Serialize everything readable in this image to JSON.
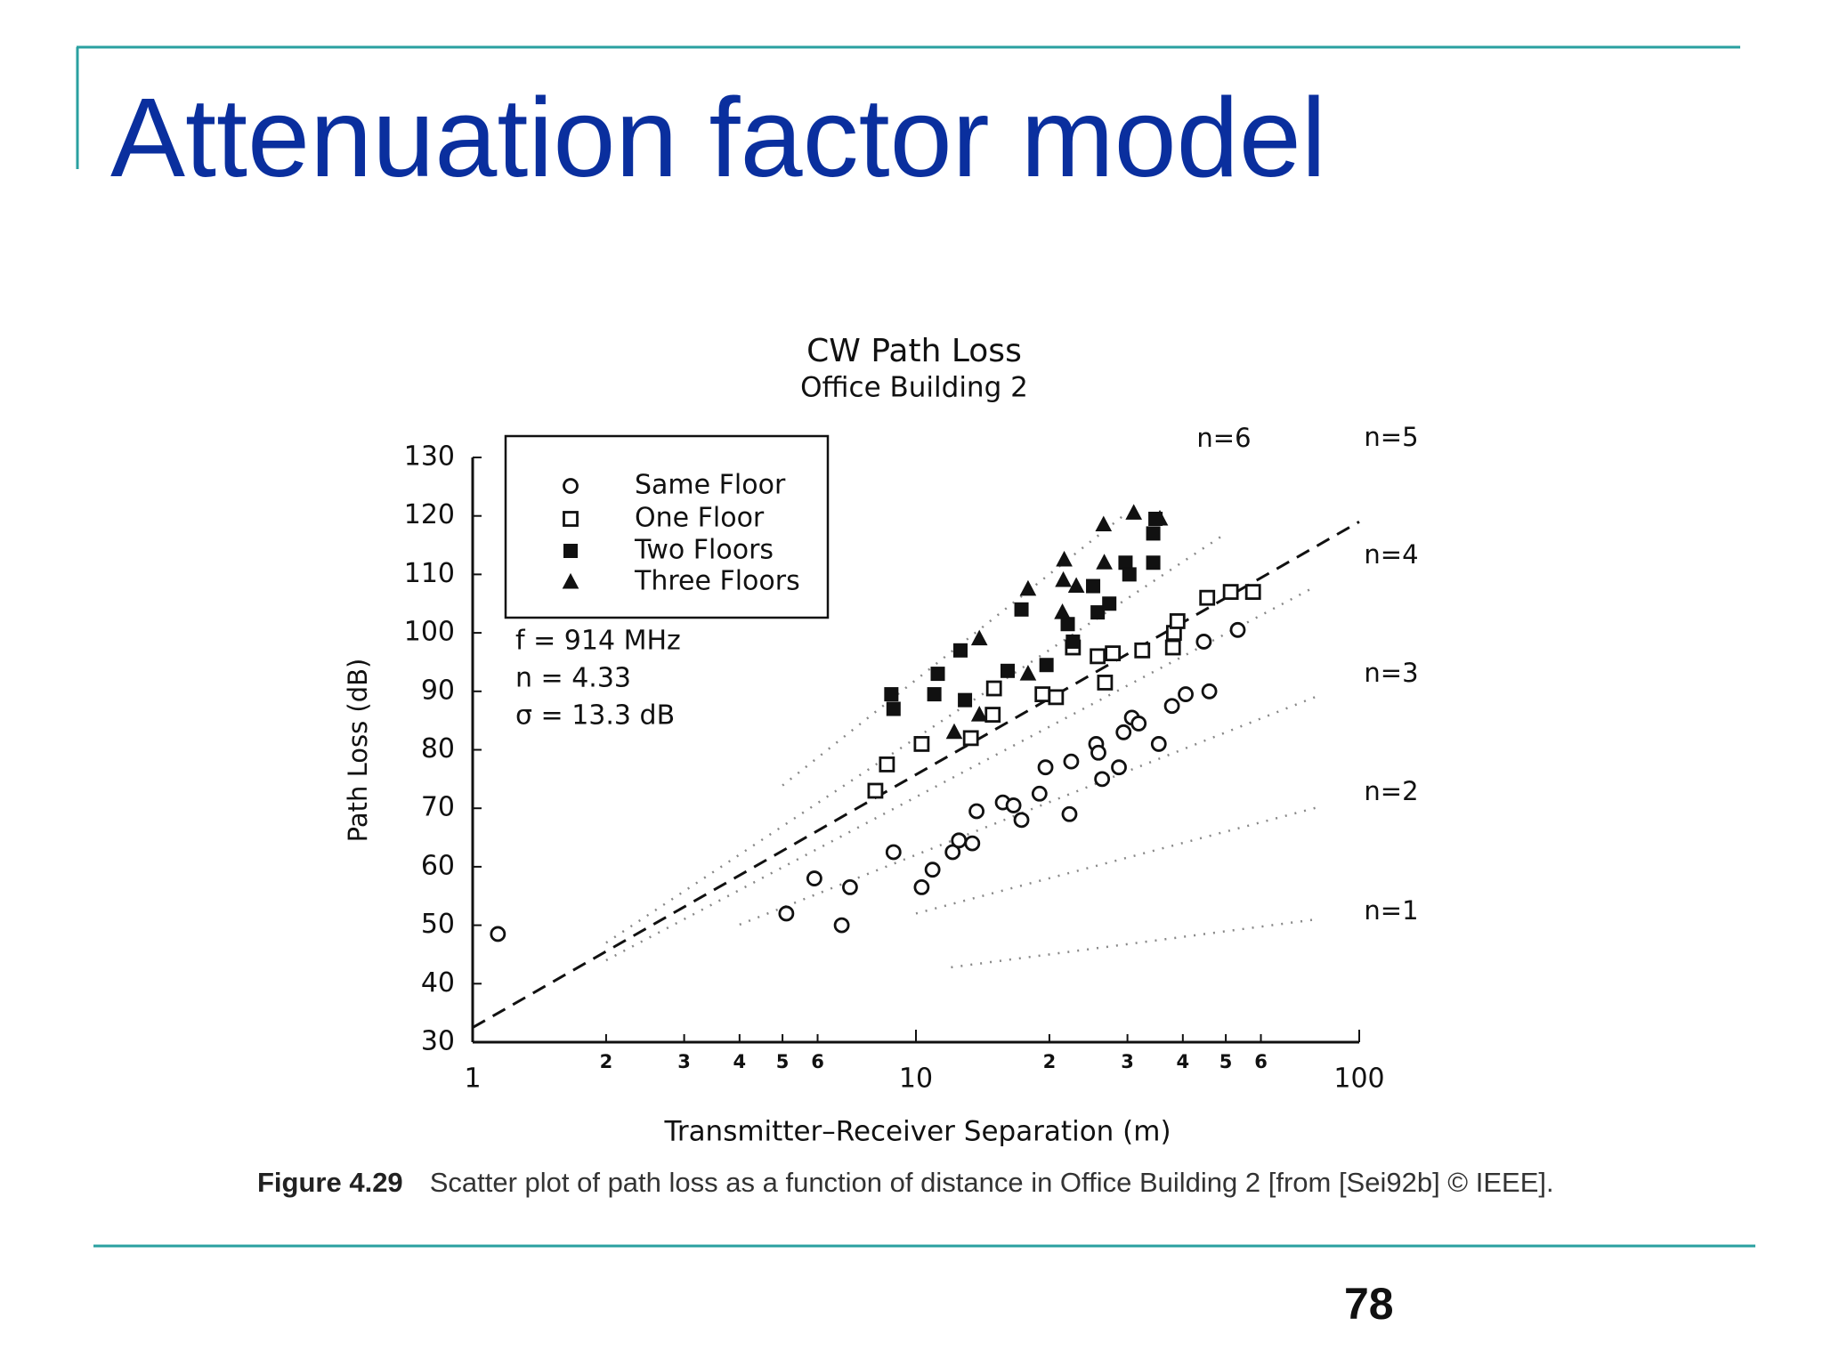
{
  "title": "Attenuation factor model",
  "page_number": "78",
  "caption": {
    "label": "Figure 4.29",
    "text": "Scatter plot of path loss as a function of distance in Office Building 2 [from [Sei92b] © IEEE]."
  },
  "chart_data": {
    "type": "scatter",
    "title": "CW Path Loss",
    "subtitle": "Office Building 2",
    "x_label": "Transmitter–Receiver Separation (m)",
    "y_label": "Path Loss (dB)",
    "annotations": [
      "f = 914 MHz",
      "n = 4.33",
      "σ = 13.3 dB"
    ],
    "x_scale": "log",
    "xlim": [
      1,
      100
    ],
    "ylim": [
      30,
      130
    ],
    "xticks": [
      1,
      2,
      3,
      4,
      5,
      6,
      10,
      {
        "value": 20,
        "label": "2"
      },
      {
        "value": 30,
        "label": "3"
      },
      {
        "value": 40,
        "label": "4"
      },
      {
        "value": 50,
        "label": "5"
      },
      {
        "value": 60,
        "label": "6"
      },
      100
    ],
    "yticks": [
      30,
      40,
      50,
      60,
      70,
      80,
      90,
      100,
      110,
      120,
      130
    ],
    "legend": "upper left",
    "series": [
      {
        "name": "Same Floor",
        "marker": "circle-open",
        "color": "#111111",
        "x": [
          1.14,
          5.1,
          5.9,
          6.8,
          7.1,
          8.9,
          10.3,
          10.9,
          12.1,
          12.5,
          13.4,
          13.7,
          15.7,
          16.6,
          17.3,
          19.0,
          19.6,
          22.2,
          22.4,
          25.5,
          25.8,
          26.3,
          28.7,
          29.4,
          30.7,
          31.8,
          35.3,
          37.8,
          40.6,
          45.9,
          44.6,
          53.2
        ],
        "values": [
          48.5,
          52,
          58,
          50,
          56.5,
          62.5,
          56.5,
          59.5,
          62.5,
          64.5,
          64,
          69.5,
          71,
          70.5,
          68,
          72.5,
          77,
          69,
          78,
          81,
          79.5,
          75,
          77,
          83,
          85.5,
          84.5,
          81,
          87.5,
          89.5,
          90,
          98.5,
          100.5
        ]
      },
      {
        "name": "One Floor",
        "marker": "square-open",
        "color": "#111111",
        "x": [
          8.1,
          8.6,
          10.3,
          13.3,
          14.9,
          15.0,
          19.3,
          20.7,
          22.6,
          25.7,
          26.7,
          27.8,
          32.4,
          38.0,
          38.2,
          38.9,
          45.4,
          51.3,
          57.6
        ],
        "values": [
          73,
          77.5,
          81,
          82,
          86,
          90.5,
          89.5,
          89,
          97.5,
          96,
          91.5,
          96.5,
          97,
          97.5,
          100,
          102,
          106,
          107,
          107
        ]
      },
      {
        "name": "Two Floors",
        "marker": "square-filled",
        "color": "#111111",
        "x": [
          8.8,
          8.9,
          11.0,
          11.2,
          12.6,
          12.9,
          16.1,
          17.3,
          19.7,
          22.0,
          22.6,
          25.1,
          25.7,
          27.3,
          29.7,
          30.3,
          34.3,
          34.7,
          34.3
        ],
        "values": [
          89.5,
          87,
          89.5,
          93,
          97,
          88.5,
          93.5,
          104,
          94.5,
          101.5,
          98.5,
          108,
          103.5,
          105,
          112,
          110,
          112,
          119.5,
          117
        ]
      },
      {
        "name": "Three Floors",
        "marker": "triangle-filled",
        "color": "#111111",
        "x": [
          12.2,
          13.9,
          13.9,
          17.9,
          17.9,
          21.4,
          21.6,
          21.5,
          23.0,
          26.5,
          26.6,
          31.0,
          35.5
        ],
        "values": [
          83,
          86,
          99,
          93,
          107.5,
          103.5,
          112.5,
          109,
          108,
          118.5,
          112,
          120.5,
          119.5
        ]
      }
    ],
    "fit_line": {
      "style": "dashed",
      "x": [
        1,
        100
      ],
      "values": [
        32.5,
        119
      ]
    },
    "reference_lines": [
      {
        "label": "n=6",
        "style": "dotted",
        "x": [
          5,
          30
        ],
        "values": [
          73.9,
          120.6
        ]
      },
      {
        "label": "n=5",
        "style": "dotted",
        "x": [
          2,
          50
        ],
        "values": [
          47,
          117
        ]
      },
      {
        "label": "n=4",
        "style": "dotted",
        "x": [
          2,
          80
        ],
        "values": [
          44,
          108
        ]
      },
      {
        "label": "n=3",
        "style": "dotted",
        "x": [
          4,
          80
        ],
        "values": [
          50.1,
          89.1
        ]
      },
      {
        "label": "n=2",
        "style": "dotted",
        "x": [
          10,
          80
        ],
        "values": [
          52,
          70.1
        ]
      },
      {
        "label": "n=1",
        "style": "dotted",
        "x": [
          12,
          80
        ],
        "values": [
          42.8,
          51
        ]
      }
    ]
  }
}
